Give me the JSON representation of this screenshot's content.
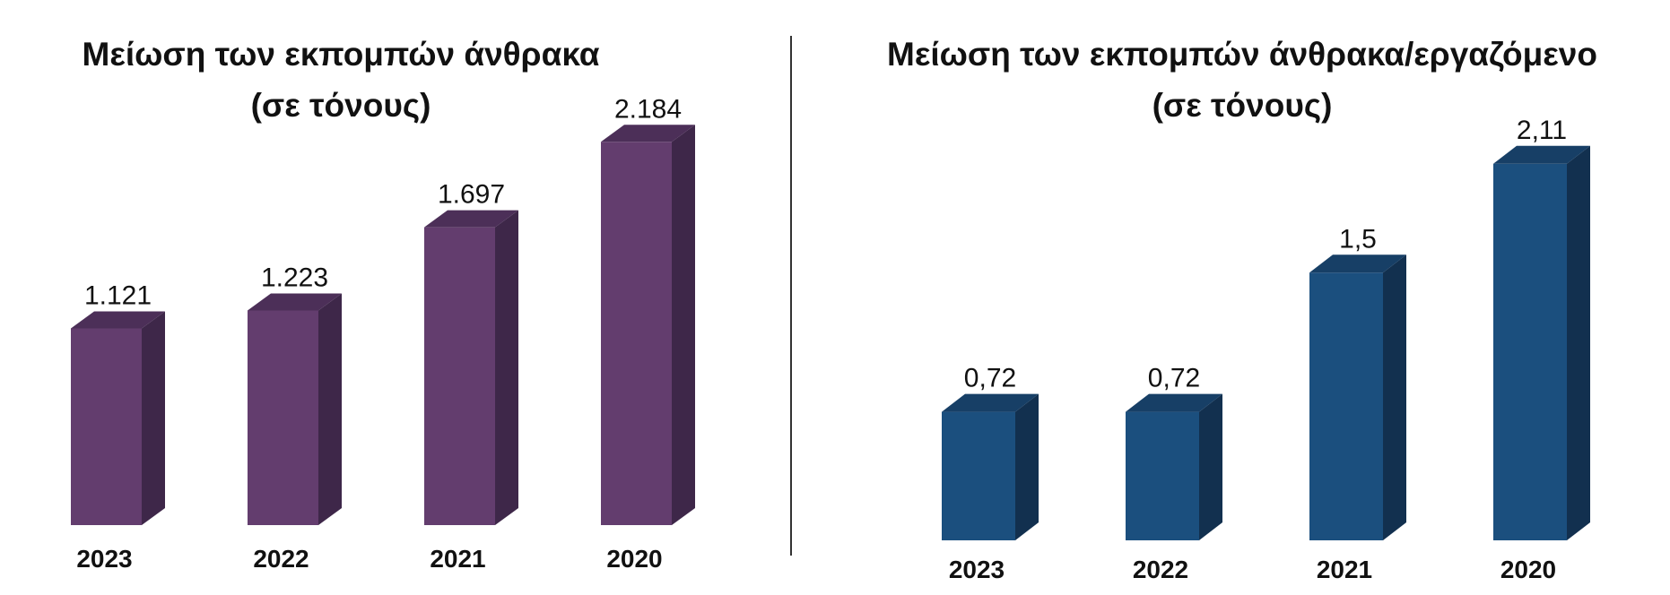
{
  "chart_data": [
    {
      "type": "bar",
      "title_lines": [
        "Μείωση των εκπομπών άνθρακα",
        "(σε τόνους)"
      ],
      "categories": [
        "2023",
        "2022",
        "2021",
        "2020"
      ],
      "values": [
        1121,
        1223,
        1697,
        2184
      ],
      "value_labels": [
        "1.121",
        "1.223",
        "1.697",
        "2.184"
      ],
      "ylim": [
        0,
        2400
      ],
      "grid": false,
      "colors": {
        "front": "#633d6e",
        "side": "#3e2749",
        "top": "#4c2f58"
      }
    },
    {
      "type": "bar",
      "title_lines": [
        "Μείωση των εκπομπών άνθρακα/εργαζόμενο",
        "(σε τόνους)"
      ],
      "categories": [
        "2023",
        "2022",
        "2021",
        "2020"
      ],
      "values": [
        0.72,
        0.72,
        1.5,
        2.11
      ],
      "value_labels": [
        "0,72",
        "0,72",
        "1,5",
        "2,11"
      ],
      "ylim": [
        0,
        2.4
      ],
      "grid": false,
      "colors": {
        "front": "#1b4f7e",
        "side": "#12304f",
        "top": "#173f66"
      }
    }
  ]
}
